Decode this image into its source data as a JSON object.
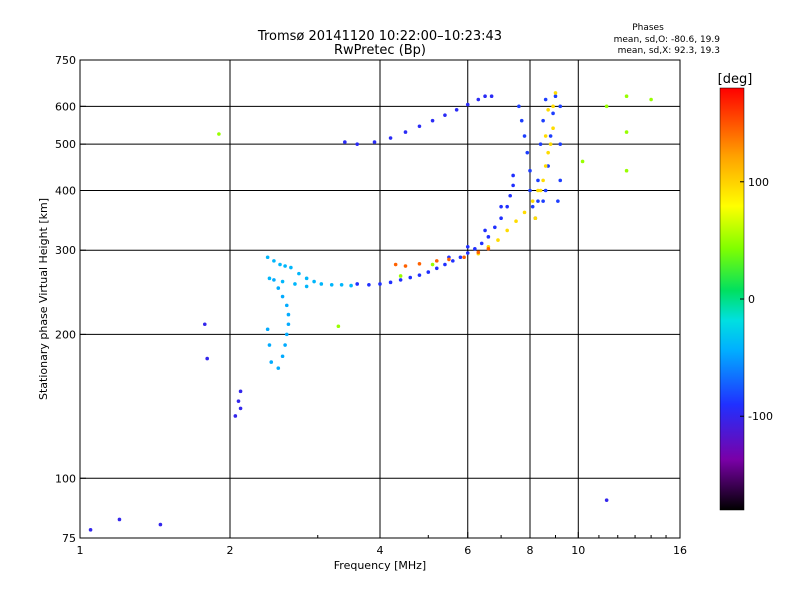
{
  "chart_data": {
    "type": "scatter",
    "title": "Tromsø 20141120 10:22:00–10:23:43",
    "subtitle": "RwPretec (Bp)",
    "xlabel": "Frequency [MHz]",
    "ylabel": "Stationary phase Virtual Height [km]",
    "x_scale": "log",
    "y_scale": "log",
    "xlim": [
      1,
      16
    ],
    "ylim": [
      75,
      750
    ],
    "x_ticks": [
      "1",
      "2",
      "4",
      "6",
      "8",
      "10",
      "16"
    ],
    "x_tick_values": [
      1,
      2,
      4,
      6,
      8,
      10,
      16
    ],
    "y_ticks": [
      "75",
      "100",
      "200",
      "300",
      "400",
      "500",
      "600",
      "750"
    ],
    "y_tick_values": [
      75,
      100,
      200,
      300,
      400,
      500,
      600,
      750
    ],
    "x_gridlines": [
      2,
      4,
      6,
      8,
      10
    ],
    "y_gridlines": [
      100,
      200,
      300,
      400,
      500,
      600
    ],
    "grid": true,
    "legend": {
      "title": "Phases",
      "lines": [
        "mean, sd,O: -80.6, 19.9",
        "mean, sd,X:  92.3, 19.3"
      ],
      "placement": "top-right"
    },
    "colorbar": {
      "label": "[deg]",
      "range": [
        -180,
        180
      ],
      "ticks": [
        100,
        0,
        -100
      ],
      "tick_labels": [
        "100",
        "0",
        "-100"
      ],
      "placement": "right"
    },
    "series": [
      {
        "trace": "lower F-trace cyan",
        "phase_deg": -40,
        "points": [
          [
            2.38,
            290
          ],
          [
            2.45,
            285
          ],
          [
            2.52,
            280
          ],
          [
            2.58,
            278
          ],
          [
            2.65,
            276
          ],
          [
            2.75,
            268
          ],
          [
            2.85,
            262
          ],
          [
            2.95,
            258
          ],
          [
            3.05,
            255
          ],
          [
            3.2,
            254
          ],
          [
            3.35,
            254
          ],
          [
            3.5,
            253
          ],
          [
            2.4,
            262
          ],
          [
            2.55,
            258
          ],
          [
            2.7,
            255
          ],
          [
            2.85,
            252
          ]
        ]
      },
      {
        "trace": "lower F-trace blue",
        "phase_deg": -90,
        "points": [
          [
            3.6,
            255
          ],
          [
            3.8,
            254
          ],
          [
            4.0,
            255
          ],
          [
            4.2,
            257
          ],
          [
            4.4,
            260
          ],
          [
            4.6,
            263
          ],
          [
            4.8,
            266
          ],
          [
            5.0,
            270
          ],
          [
            5.2,
            275
          ],
          [
            5.4,
            280
          ],
          [
            5.6,
            285
          ],
          [
            5.8,
            290
          ],
          [
            6.0,
            296
          ],
          [
            6.2,
            302
          ],
          [
            6.4,
            310
          ],
          [
            6.6,
            320
          ],
          [
            6.8,
            335
          ],
          [
            7.0,
            350
          ],
          [
            7.2,
            370
          ],
          [
            7.3,
            390
          ],
          [
            7.4,
            410
          ],
          [
            5.5,
            290
          ],
          [
            6.0,
            305
          ],
          [
            6.5,
            330
          ],
          [
            7.0,
            370
          ],
          [
            7.4,
            430
          ]
        ]
      },
      {
        "trace": "upper O-trace",
        "phase_deg": -85,
        "points": [
          [
            7.6,
            600
          ],
          [
            7.7,
            560
          ],
          [
            7.8,
            520
          ],
          [
            7.9,
            480
          ],
          [
            8.0,
            440
          ],
          [
            8.0,
            400
          ],
          [
            8.1,
            370
          ],
          [
            8.2,
            350
          ],
          [
            8.3,
            420
          ],
          [
            8.4,
            500
          ],
          [
            8.5,
            560
          ],
          [
            8.6,
            620
          ],
          [
            8.3,
            380
          ],
          [
            8.5,
            380
          ],
          [
            8.6,
            400
          ],
          [
            8.7,
            450
          ],
          [
            8.8,
            520
          ],
          [
            8.9,
            580
          ],
          [
            9.0,
            630
          ],
          [
            9.1,
            380
          ],
          [
            9.2,
            420
          ],
          [
            9.2,
            500
          ],
          [
            9.2,
            600
          ]
        ]
      },
      {
        "trace": "X-trace yellow",
        "phase_deg": 95,
        "points": [
          [
            6.3,
            295
          ],
          [
            6.6,
            305
          ],
          [
            6.9,
            315
          ],
          [
            7.2,
            330
          ],
          [
            7.5,
            345
          ],
          [
            7.8,
            360
          ],
          [
            8.1,
            380
          ],
          [
            8.3,
            400
          ],
          [
            8.5,
            420
          ],
          [
            8.6,
            450
          ],
          [
            8.7,
            480
          ],
          [
            8.8,
            500
          ],
          [
            8.9,
            540
          ],
          [
            8.9,
            600
          ],
          [
            9.0,
            640
          ],
          [
            8.2,
            350
          ],
          [
            8.4,
            400
          ],
          [
            8.6,
            520
          ],
          [
            8.7,
            590
          ]
        ]
      },
      {
        "trace": "X-trace orange",
        "phase_deg": 145,
        "points": [
          [
            4.3,
            280
          ],
          [
            4.5,
            278
          ],
          [
            4.8,
            281
          ],
          [
            5.2,
            285
          ],
          [
            5.5,
            287
          ],
          [
            5.9,
            290
          ],
          [
            6.3,
            297
          ],
          [
            6.6,
            302
          ]
        ]
      },
      {
        "trace": "E/sporadic cyan column",
        "phase_deg": -45,
        "points": [
          [
            2.5,
            170
          ],
          [
            2.55,
            180
          ],
          [
            2.58,
            190
          ],
          [
            2.6,
            200
          ],
          [
            2.62,
            210
          ],
          [
            2.62,
            220
          ],
          [
            2.6,
            230
          ],
          [
            2.55,
            240
          ],
          [
            2.5,
            250
          ],
          [
            2.45,
            260
          ],
          [
            2.38,
            205
          ],
          [
            2.4,
            190
          ],
          [
            2.42,
            175
          ]
        ]
      },
      {
        "trace": "high layer 500-600",
        "phase_deg": -95,
        "points": [
          [
            3.4,
            505
          ],
          [
            3.6,
            500
          ],
          [
            3.9,
            505
          ],
          [
            4.2,
            515
          ],
          [
            4.5,
            530
          ],
          [
            4.8,
            545
          ],
          [
            5.1,
            560
          ],
          [
            5.4,
            575
          ],
          [
            5.7,
            590
          ],
          [
            6.0,
            605
          ],
          [
            6.3,
            620
          ],
          [
            6.5,
            630
          ],
          [
            6.7,
            630
          ]
        ]
      },
      {
        "trace": "scattered low",
        "phase_deg": -100,
        "points": [
          [
            2.05,
            135
          ],
          [
            2.1,
            140
          ],
          [
            2.08,
            145
          ],
          [
            2.1,
            152
          ],
          [
            1.45,
            80
          ],
          [
            1.2,
            82
          ],
          [
            1.05,
            78
          ],
          [
            11.4,
            90
          ],
          [
            1.78,
            210
          ],
          [
            1.8,
            178
          ]
        ]
      },
      {
        "trace": "scattered misc",
        "phase_deg": 50,
        "points": [
          [
            1.9,
            525
          ],
          [
            12.5,
            630
          ],
          [
            12.5,
            530
          ],
          [
            11.4,
            600
          ],
          [
            10.2,
            460
          ],
          [
            12.5,
            440
          ],
          [
            14,
            620
          ],
          [
            4.4,
            265
          ],
          [
            5.1,
            280
          ],
          [
            3.3,
            208
          ]
        ]
      }
    ]
  }
}
